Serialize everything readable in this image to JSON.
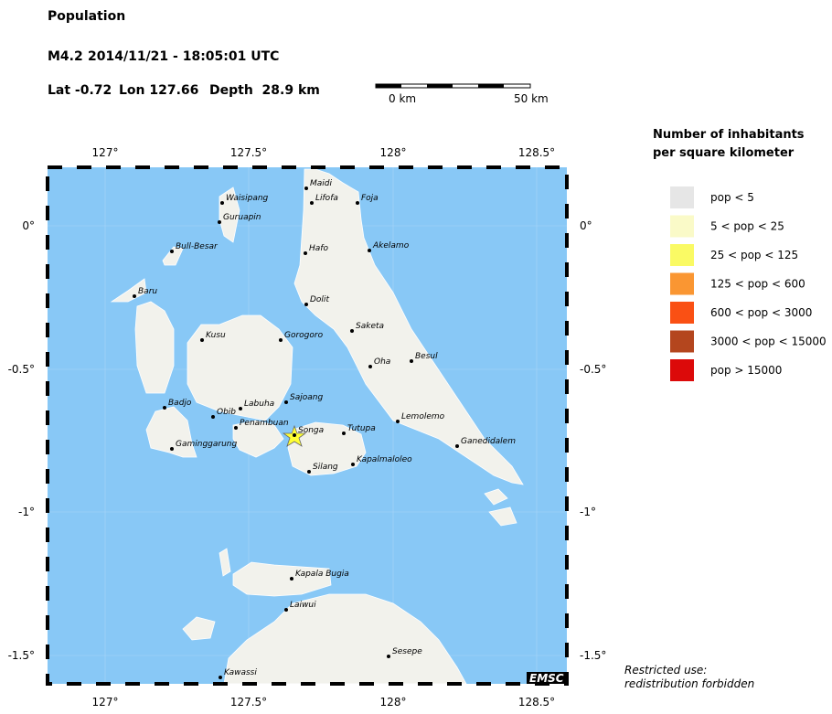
{
  "header": {
    "title": "Population",
    "magnitude": "M4.2",
    "datetime": "2014/11/21 - 18:05:01 UTC",
    "lat": "Lat -0.72",
    "lon": "Lon 127.66",
    "depth": "Depth  28.9 km"
  },
  "scale_bar": {
    "start": "0 km",
    "end": "50 km"
  },
  "map": {
    "lon_ticks": [
      "127°",
      "127.5°",
      "128°",
      "128.5°"
    ],
    "lat_ticks": [
      "0°",
      "-0.5°",
      "-1°",
      "-1.5°"
    ],
    "places": [
      "Maidi",
      "Lifofa",
      "Foja",
      "Waisipang",
      "Guruapin",
      "Hafo",
      "Akelamo",
      "Bull-Besar",
      "Baru",
      "Dolit",
      "Saketa",
      "Kusu",
      "Gorogoro",
      "Besul",
      "Oha",
      "Sajoang",
      "Labuha",
      "Badjo",
      "Obib",
      "Penambuan",
      "Songa",
      "Tutupa",
      "Lemolemo",
      "Ganedidalem",
      "Gaminggarung",
      "Kapalmaloleo",
      "Silang",
      "Kapala Bugia",
      "Laiwui",
      "Sesepe",
      "Kawassi"
    ],
    "logo": "EMSC"
  },
  "legend": {
    "title": [
      "Number of inhabitants",
      "per square kilometer"
    ],
    "items": [
      {
        "label": "pop < 5",
        "color": "#e6e6e6"
      },
      {
        "label": "5 < pop < 25",
        "color": "#fafac8"
      },
      {
        "label": "25 < pop < 125",
        "color": "#fafa64"
      },
      {
        "label": "125 < pop < 600",
        "color": "#fa9632"
      },
      {
        "label": "600 < pop < 3000",
        "color": "#fa5014"
      },
      {
        "label": "3000 < pop < 15000",
        "color": "#b4461e"
      },
      {
        "label": "pop > 15000",
        "color": "#dc0a0a"
      }
    ]
  },
  "footer": [
    "Restricted use:",
    "redistribution forbidden"
  ]
}
